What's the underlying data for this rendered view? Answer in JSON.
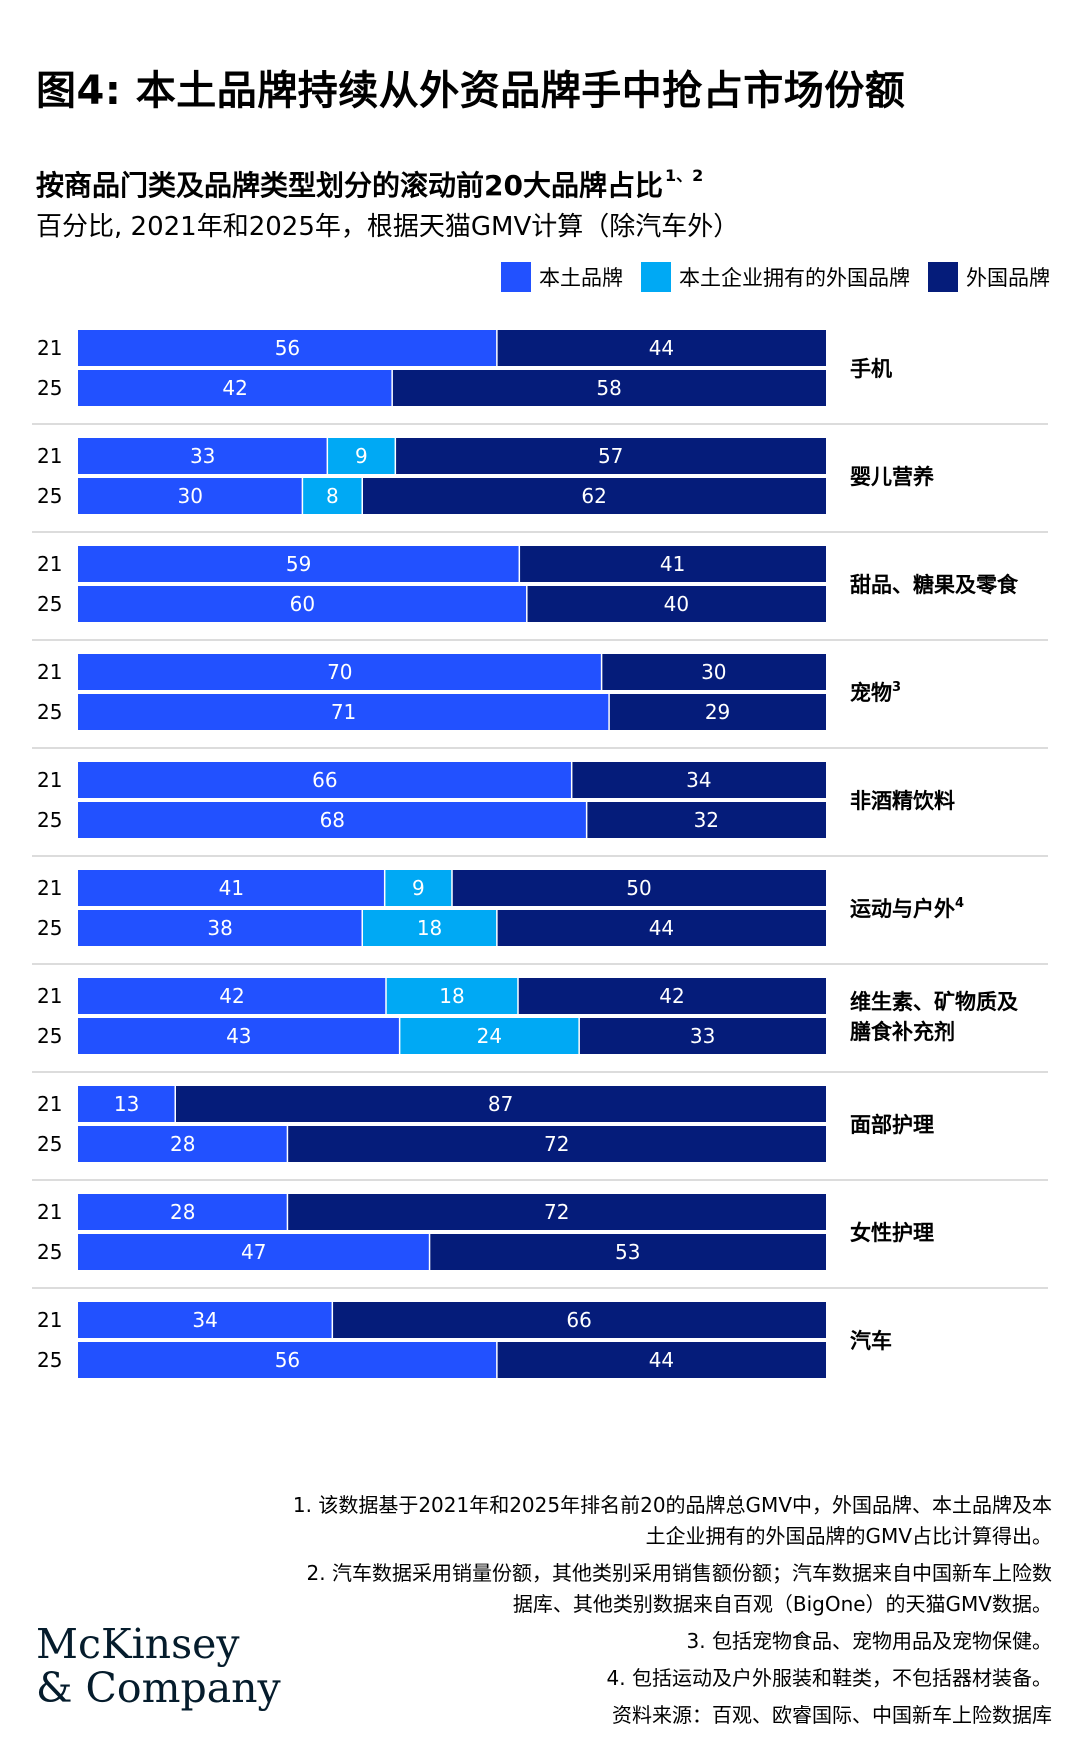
{
  "figure_title": "图4: 本土品牌持续从外资品牌手中抢占市场份额",
  "chart_title": "按商品门类及品牌类型划分的滚动前20大品牌占比",
  "chart_title_sup": "1、2",
  "chart_subtitle": "百分比, 2021年和2025年，根据天猫GMV计算（除汽车外）",
  "colors": {
    "domestic": "#2251ff",
    "domestic_owned_foreign": "#00a9f4",
    "foreign": "#051c7a",
    "divider": "#d0d0d0"
  },
  "legend": [
    {
      "label": "本土品牌",
      "color": "#2251ff"
    },
    {
      "label": "本土企业拥有的外国品牌",
      "color": "#00a9f4"
    },
    {
      "label": "外国品牌",
      "color": "#051c7a"
    }
  ],
  "chart_data": {
    "type": "bar",
    "orientation": "horizontal-stacked-100",
    "title": "按商品门类及品牌类型划分的滚动前20大品牌占比",
    "unit": "百分比",
    "series_names": [
      "本土品牌",
      "本土企业拥有的外国品牌",
      "外国品牌"
    ],
    "categories": [
      {
        "name": "手机",
        "sup": "",
        "rows": [
          {
            "year": "21",
            "values": [
              56,
              0,
              44
            ]
          },
          {
            "year": "25",
            "values": [
              42,
              0,
              58
            ]
          }
        ]
      },
      {
        "name": "婴儿营养",
        "sup": "",
        "rows": [
          {
            "year": "21",
            "values": [
              33,
              9,
              57
            ]
          },
          {
            "year": "25",
            "values": [
              30,
              8,
              62
            ]
          }
        ]
      },
      {
        "name": "甜品、糖果及零食",
        "sup": "",
        "rows": [
          {
            "year": "21",
            "values": [
              59,
              0,
              41
            ]
          },
          {
            "year": "25",
            "values": [
              60,
              0,
              40
            ]
          }
        ]
      },
      {
        "name": "宠物",
        "sup": "3",
        "rows": [
          {
            "year": "21",
            "values": [
              70,
              0,
              30
            ]
          },
          {
            "year": "25",
            "values": [
              71,
              0,
              29
            ]
          }
        ]
      },
      {
        "name": "非酒精饮料",
        "sup": "",
        "rows": [
          {
            "year": "21",
            "values": [
              66,
              0,
              34
            ]
          },
          {
            "year": "25",
            "values": [
              68,
              0,
              32
            ]
          }
        ]
      },
      {
        "name": "运动与户外",
        "sup": "4",
        "rows": [
          {
            "year": "21",
            "values": [
              41,
              9,
              50
            ]
          },
          {
            "year": "25",
            "values": [
              38,
              18,
              44
            ]
          }
        ]
      },
      {
        "name": "维生素、矿物质及\n膳食补充剂",
        "sup": "",
        "rows": [
          {
            "year": "21",
            "values": [
              42,
              18,
              42
            ]
          },
          {
            "year": "25",
            "values": [
              43,
              24,
              33
            ]
          }
        ]
      },
      {
        "name": "面部护理",
        "sup": "",
        "rows": [
          {
            "year": "21",
            "values": [
              13,
              0,
              87
            ]
          },
          {
            "year": "25",
            "values": [
              28,
              0,
              72
            ]
          }
        ]
      },
      {
        "name": "女性护理",
        "sup": "",
        "rows": [
          {
            "year": "21",
            "values": [
              28,
              0,
              72
            ]
          },
          {
            "year": "25",
            "values": [
              47,
              0,
              53
            ]
          }
        ]
      },
      {
        "name": "汽车",
        "sup": "",
        "rows": [
          {
            "year": "21",
            "values": [
              34,
              0,
              66
            ]
          },
          {
            "year": "25",
            "values": [
              56,
              0,
              44
            ]
          }
        ]
      }
    ]
  },
  "footnotes": [
    "1. 该数据基于2021年和2025年排名前20的品牌总GMV中，外国品牌、本土品牌及本土企业拥有的外国品牌的GMV占比计算得出。",
    "2. 汽车数据采用销量份额，其他类别采用销售额份额；汽车数据来自中国新车上险数据库、其他类别数据来自百观（BigOne）的天猫GMV数据。",
    "3. 包括宠物食品、宠物用品及宠物保健。",
    "4. 包括运动及户外服装和鞋类，不包括器材装备。",
    "资料来源：百观、欧睿国际、中国新车上险数据库"
  ],
  "logo": {
    "line1": "McKinsey",
    "line2": "& Company"
  }
}
